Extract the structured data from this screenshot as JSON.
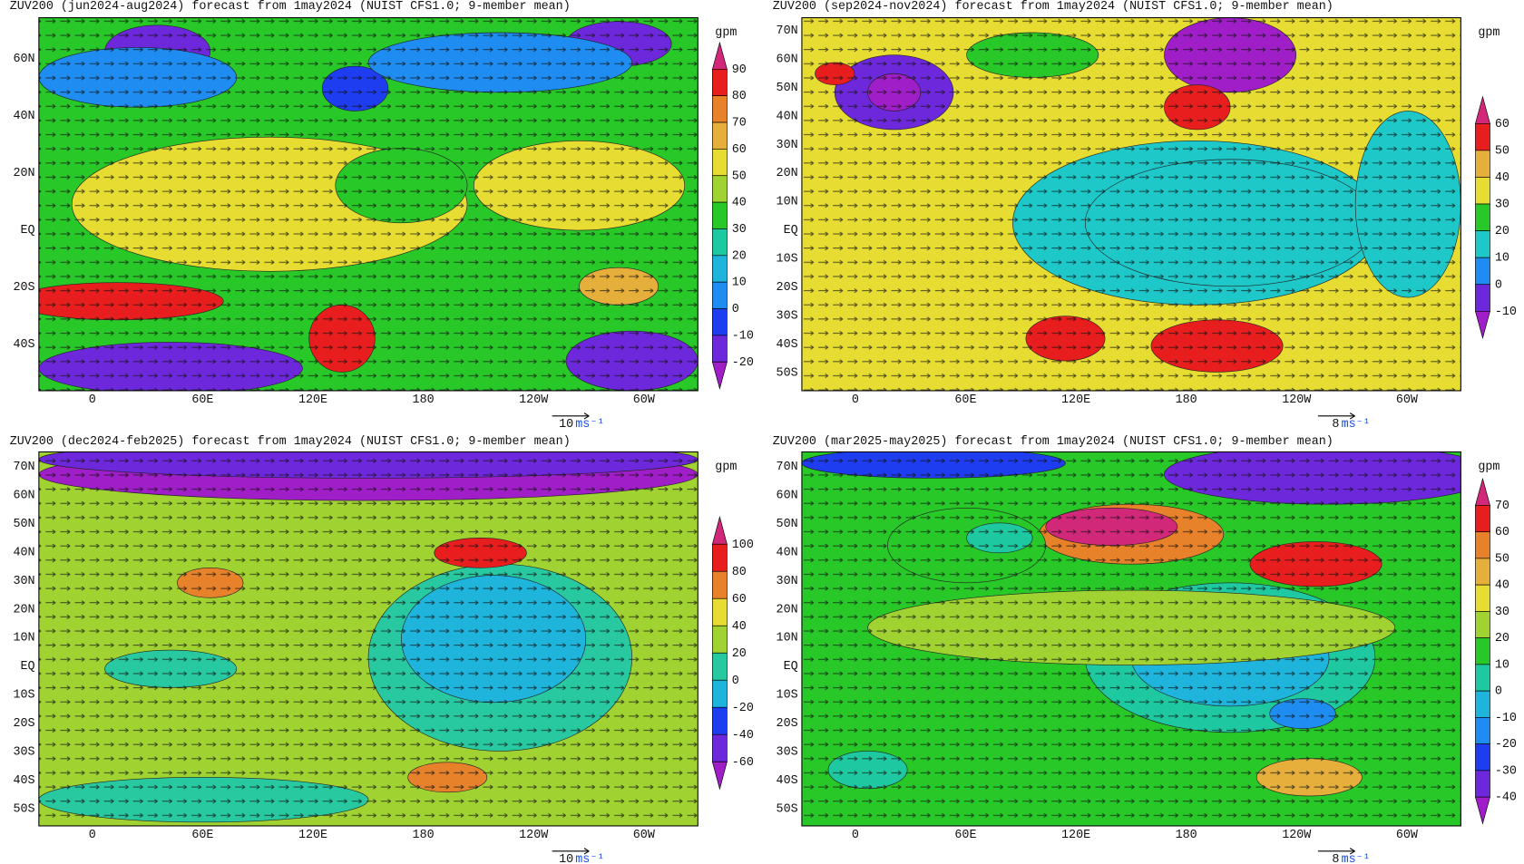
{
  "panels": [
    {
      "title": "ZUV200 (jun2024-aug2024) forecast from 1may2024 (NUIST CFS1.0; 9-member mean)",
      "lon_labels": [
        "0",
        "60E",
        "120E",
        "180",
        "120W",
        "60W"
      ],
      "lat_labels": [
        "60N",
        "40N",
        "20N",
        "EQ",
        "20S",
        "40S"
      ],
      "colorbar": {
        "unit": "gpm",
        "levels": [
          90,
          80,
          70,
          60,
          50,
          40,
          30,
          20,
          10,
          0,
          -10,
          -20
        ],
        "colors": [
          "#d2287a",
          "#e81e1e",
          "#e8822a",
          "#e6af3c",
          "#e6dc32",
          "#a0d232",
          "#28c828",
          "#1ec8a0",
          "#1eb4dc",
          "#1e8cf0",
          "#1e3cf0",
          "#6e28dc",
          "#a01ec8"
        ]
      },
      "ref_vector": {
        "magnitude": 10,
        "unit": "ms⁻¹"
      }
    },
    {
      "title": "ZUV200 (sep2024-nov2024) forecast from 1may2024 (NUIST CFS1.0; 9-member mean)",
      "lon_labels": [
        "0",
        "60E",
        "120E",
        "180",
        "120W",
        "60W"
      ],
      "lat_labels": [
        "70N",
        "60N",
        "50N",
        "40N",
        "30N",
        "20N",
        "10N",
        "EQ",
        "10S",
        "20S",
        "30S",
        "40S",
        "50S"
      ],
      "colorbar": {
        "unit": "gpm",
        "levels": [
          60,
          50,
          40,
          30,
          20,
          10,
          0,
          -10
        ],
        "colors": [
          "#d2287a",
          "#e81e1e",
          "#e6af3c",
          "#e6dc32",
          "#28c828",
          "#1ec8c8",
          "#1e8cf0",
          "#6e28dc",
          "#a01ec8"
        ]
      },
      "ref_vector": {
        "magnitude": 8,
        "unit": "ms⁻¹"
      }
    },
    {
      "title": "ZUV200 (dec2024-feb2025) forecast from 1may2024 (NUIST CFS1.0; 9-member mean)",
      "lon_labels": [
        "0",
        "60E",
        "120E",
        "180",
        "120W",
        "60W"
      ],
      "lat_labels": [
        "70N",
        "60N",
        "50N",
        "40N",
        "30N",
        "20N",
        "10N",
        "EQ",
        "10S",
        "20S",
        "30S",
        "40S",
        "50S"
      ],
      "colorbar": {
        "unit": "gpm",
        "levels": [
          100,
          80,
          60,
          40,
          20,
          0,
          -20,
          -40,
          -60
        ],
        "colors": [
          "#d2287a",
          "#e81e1e",
          "#e8822a",
          "#e6dc32",
          "#a0d232",
          "#28c8a0",
          "#1eb4dc",
          "#1e3cf0",
          "#6e28dc",
          "#a01ec8"
        ]
      },
      "ref_vector": {
        "magnitude": 10,
        "unit": "ms⁻¹"
      }
    },
    {
      "title": "ZUV200 (mar2025-may2025) forecast from 1may2024 (NUIST CFS1.0; 9-member mean)",
      "lon_labels": [
        "0",
        "60E",
        "120E",
        "180",
        "120W",
        "60W"
      ],
      "lat_labels": [
        "70N",
        "60N",
        "50N",
        "40N",
        "30N",
        "20N",
        "10N",
        "EQ",
        "10S",
        "20S",
        "30S",
        "40S",
        "50S"
      ],
      "colorbar": {
        "unit": "gpm",
        "levels": [
          70,
          60,
          50,
          40,
          30,
          20,
          10,
          0,
          -10,
          -20,
          -30,
          -40
        ],
        "colors": [
          "#d2287a",
          "#e81e1e",
          "#e8822a",
          "#e6af3c",
          "#e6dc32",
          "#a0d232",
          "#28c828",
          "#1ec8a0",
          "#1eb4dc",
          "#1e8cf0",
          "#1e3cf0",
          "#6e28dc",
          "#a01ec8"
        ]
      },
      "ref_vector": {
        "magnitude": 8,
        "unit": "ms⁻¹"
      }
    }
  ]
}
